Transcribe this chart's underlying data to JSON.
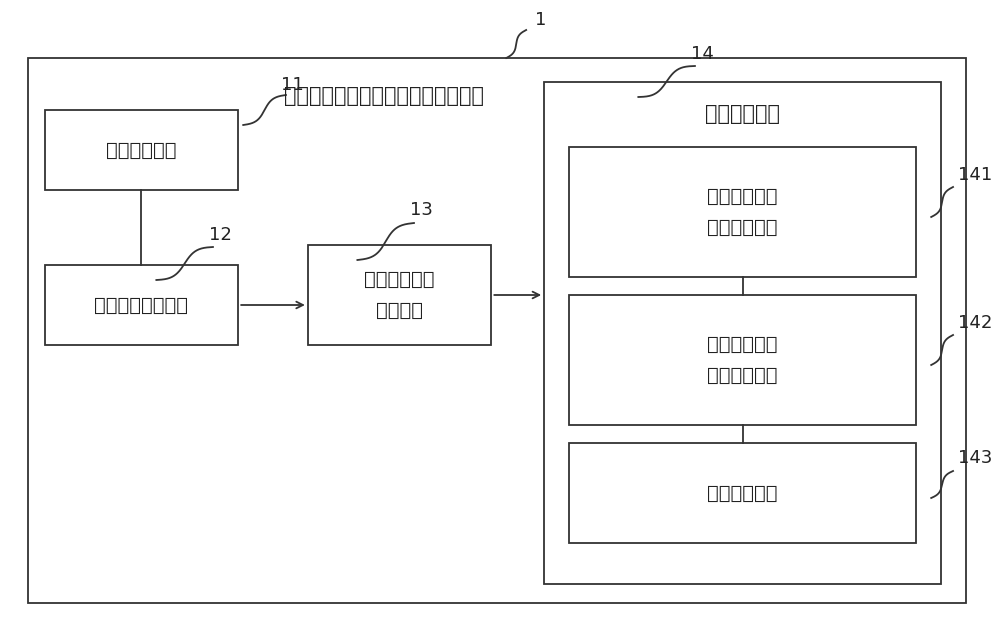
{
  "title": "离散无线接入点负载均衡的控制系统",
  "bg_color": "#ffffff",
  "box_color": "#333333",
  "text_color": "#222222",
  "label_1": "1",
  "label_11": "11",
  "label_12": "12",
  "label_13": "13",
  "label_14": "14",
  "label_141": "141",
  "label_142": "142",
  "label_143": "143",
  "box_peizhi": "配置广播模块",
  "box_fuzai": "负载信息广播模块",
  "box_linjv": "邻居负载信息\n列表模块",
  "box_jieru_title": "接入控制模块",
  "box_141": "用户设备流量\n负载均衡单元",
  "box_142": "用户设备数量\n负载均衡单元",
  "box_143": "信息发送单元",
  "font_size_title": 15,
  "font_size_box": 14,
  "font_size_label": 13
}
